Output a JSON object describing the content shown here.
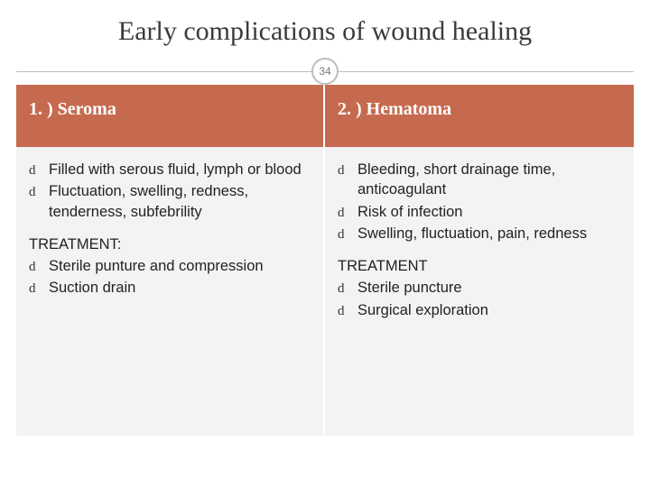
{
  "title": "Early complications of wound healing",
  "page_number": "34",
  "colors": {
    "accent": "#c66a4f",
    "panel_bg": "#f3f3f3",
    "divider": "#bdbdbd",
    "text": "#2b2b2b"
  },
  "columns": [
    {
      "header": "1. ) Seroma",
      "bullets_a": [
        "Filled with serous fluid, lymph or blood",
        "Fluctuation, swelling, redness, tenderness, subfebrility"
      ],
      "treatment_label": "TREATMENT:",
      "bullets_b": [
        "Sterile punture and compression",
        "Suction drain"
      ]
    },
    {
      "header": "2. ) Hematoma",
      "bullets_a": [
        "Bleeding, short drainage time, anticoagulant",
        "Risk of infection",
        "Swelling, fluctuation, pain, redness"
      ],
      "treatment_label": "TREATMENT",
      "bullets_b": [
        "Sterile puncture",
        "Surgical exploration"
      ]
    }
  ],
  "bullet_glyph": "d"
}
